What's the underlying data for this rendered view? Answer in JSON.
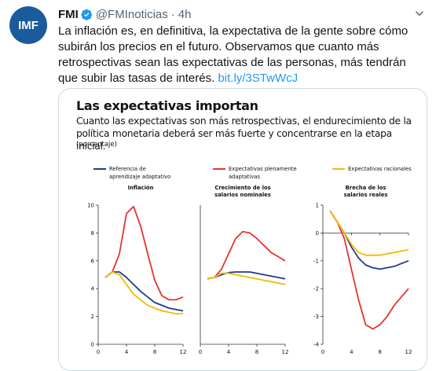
{
  "tweet": {
    "author_name": "FMI",
    "handle": "@FMInoticias",
    "separator": "·",
    "time": "4h",
    "avatar_text": "IMF",
    "text": "La inflación es, en definitiva, la expectativa de la gente sobre cómo subirán los precios en el futuro. Observamos que cuanto más retrospectivas sean las expectativas de las personas, más tendrán que subir las tasas de interés.",
    "link": "bit.ly/3STwWcJ"
  },
  "colors": {
    "blue": "#1f3a93",
    "red": "#e3342f",
    "yellow": "#f5b800",
    "link": "#1d9bf0"
  },
  "icons": {
    "verified": "verified-badge-icon",
    "more": "chevron-down-icon"
  },
  "figure": {
    "title": "Las expectativas importan",
    "subtitle": "Cuanto las expectativas son más retrospectivas, el endurecimiento de la política monetaria deberá ser más fuerte y concentrarse en la etapa inicial.",
    "unit": "(porcentaje)",
    "legend": [
      {
        "label_line1": "Referencia de",
        "label_line2": "aprendizaje adaptativo"
      },
      {
        "label_line1": "Expectativas plenamente",
        "label_line2": "adaptativas"
      },
      {
        "label_line1": "Expectativas racionales",
        "label_line2": ""
      }
    ]
  },
  "chart_data": [
    {
      "type": "line",
      "title": "Inflación",
      "ylim": [
        0,
        10
      ],
      "yticks": [
        0,
        2,
        4,
        6,
        8,
        10
      ],
      "xticks": [
        0,
        4,
        8,
        12
      ],
      "x": [
        1,
        2,
        3,
        4,
        5,
        6,
        7,
        8,
        9,
        10,
        11,
        12
      ],
      "series": [
        {
          "name": "Referencia de aprendizaje adaptativo",
          "values": [
            4.8,
            5.2,
            5.2,
            4.8,
            4.3,
            3.8,
            3.4,
            3.0,
            2.8,
            2.6,
            2.5,
            2.4
          ]
        },
        {
          "name": "Expectativas plenamente adaptativas",
          "values": [
            4.8,
            5.2,
            6.5,
            9.4,
            9.9,
            8.5,
            6.5,
            4.6,
            3.5,
            3.2,
            3.2,
            3.4
          ]
        },
        {
          "name": "Expectativas racionales",
          "values": [
            4.8,
            5.2,
            5.0,
            4.3,
            3.6,
            3.2,
            2.8,
            2.6,
            2.4,
            2.3,
            2.2,
            2.2
          ]
        }
      ]
    },
    {
      "type": "line",
      "title": "Crecimiento de los salarios nominales",
      "ylim": [
        0,
        10
      ],
      "xticks": [
        0,
        4,
        8,
        12
      ],
      "x": [
        1,
        2,
        3,
        4,
        5,
        6,
        7,
        8,
        9,
        10,
        11,
        12
      ],
      "series": [
        {
          "name": "Referencia de aprendizaje adaptativo",
          "values": [
            4.7,
            4.8,
            5.0,
            5.15,
            5.2,
            5.2,
            5.2,
            5.1,
            5.0,
            4.9,
            4.8,
            4.7
          ]
        },
        {
          "name": "Expectativas plenamente adaptativas",
          "values": [
            4.7,
            4.8,
            5.4,
            6.5,
            7.6,
            8.1,
            8.0,
            7.6,
            7.1,
            6.6,
            6.3,
            6.0
          ]
        },
        {
          "name": "Expectativas racionales",
          "values": [
            4.7,
            4.8,
            5.1,
            5.1,
            5.0,
            4.9,
            4.8,
            4.7,
            4.6,
            4.5,
            4.4,
            4.3
          ]
        }
      ]
    },
    {
      "type": "line",
      "title": "Brecha de los salarios reales",
      "ylim": [
        -4,
        1
      ],
      "yticks": [
        -4,
        -3,
        -2,
        -1,
        0,
        1
      ],
      "xticks": [
        0,
        4,
        8,
        12
      ],
      "x": [
        1,
        2,
        3,
        4,
        5,
        6,
        7,
        8,
        9,
        10,
        11,
        12
      ],
      "series": [
        {
          "name": "Referencia de aprendizaje adaptativo",
          "values": [
            0.8,
            0.4,
            0.0,
            -0.5,
            -0.9,
            -1.15,
            -1.25,
            -1.3,
            -1.25,
            -1.2,
            -1.1,
            -1.0
          ]
        },
        {
          "name": "Expectativas plenamente adaptativas",
          "values": [
            0.8,
            0.4,
            -0.2,
            -1.3,
            -2.4,
            -3.3,
            -3.45,
            -3.3,
            -3.0,
            -2.6,
            -2.3,
            -2.0
          ]
        },
        {
          "name": "Expectativas racionales",
          "values": [
            0.8,
            0.4,
            0.0,
            -0.4,
            -0.7,
            -0.8,
            -0.8,
            -0.8,
            -0.75,
            -0.7,
            -0.65,
            -0.6
          ]
        }
      ]
    }
  ]
}
